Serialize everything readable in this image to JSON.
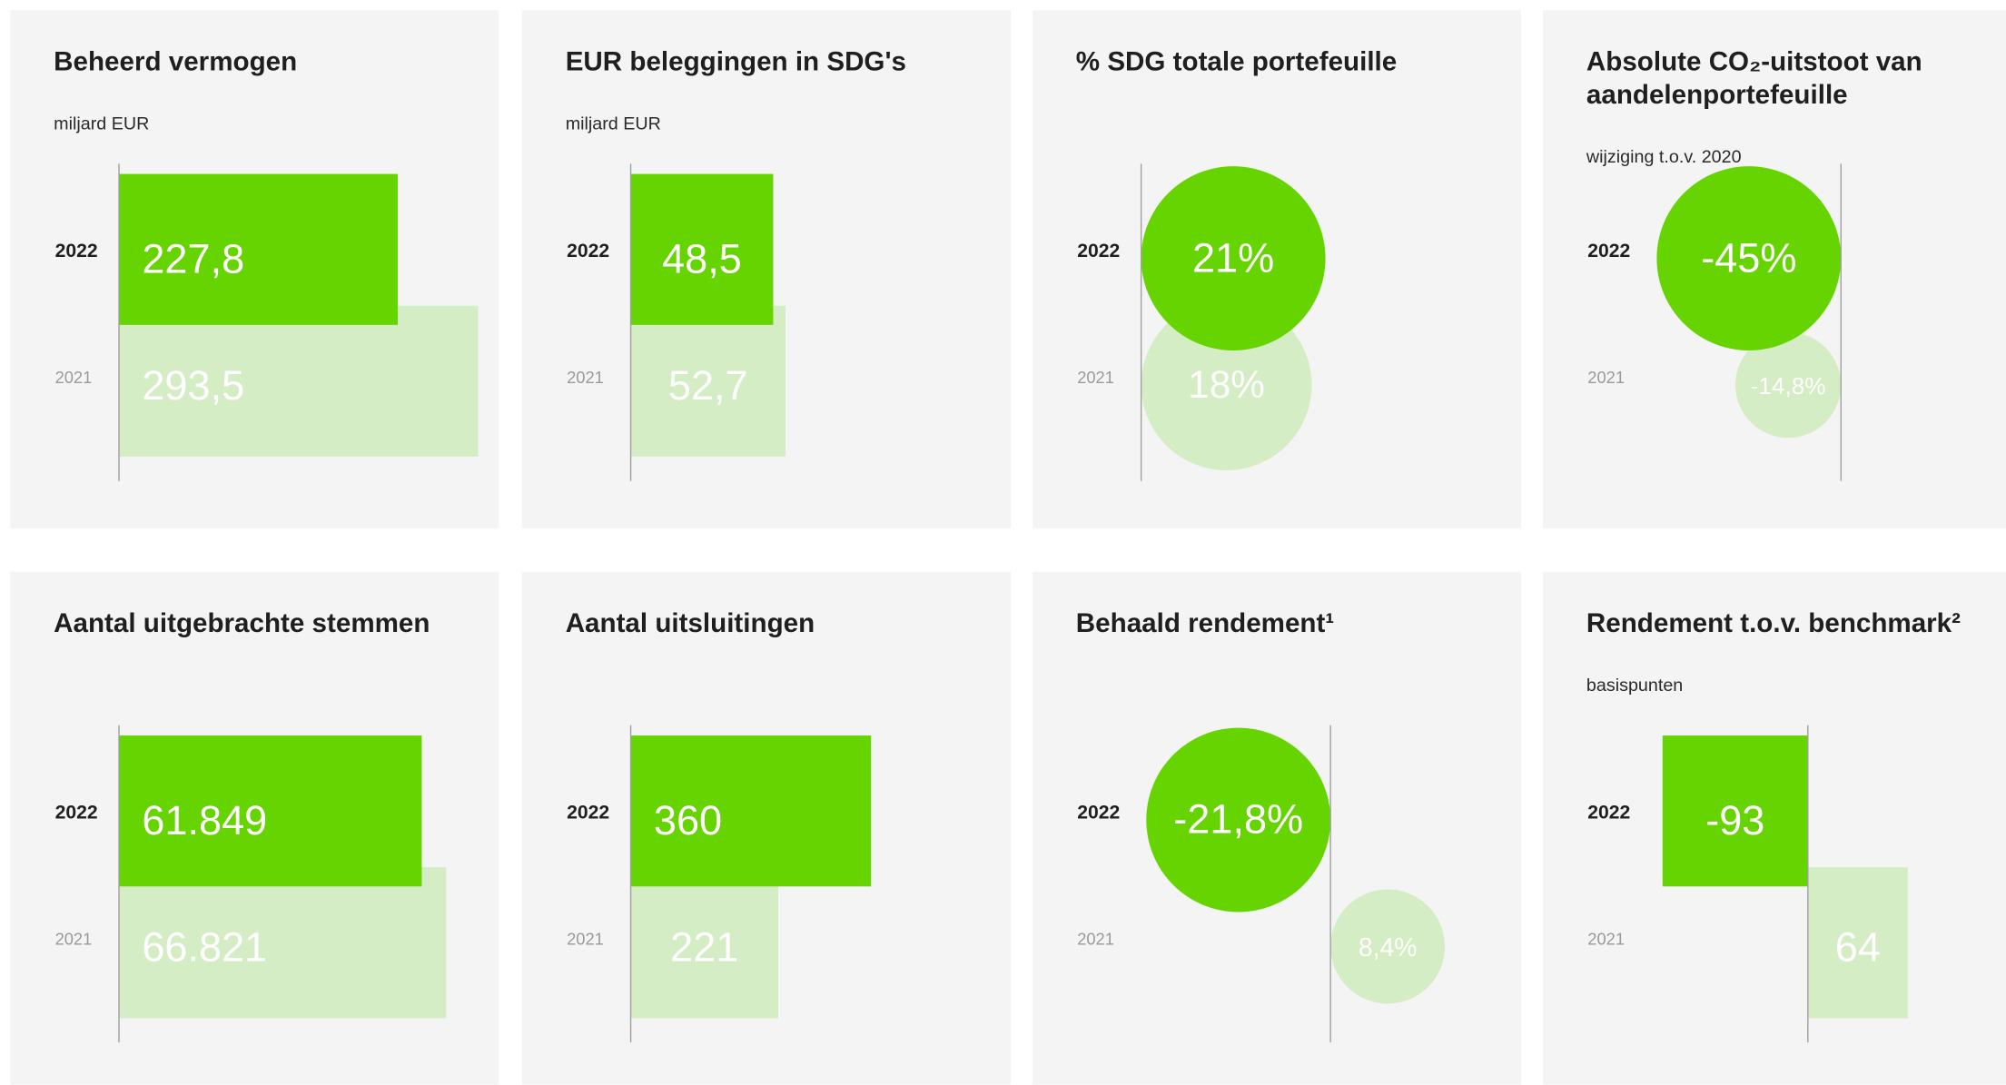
{
  "chart_data": [
    {
      "type": "bar",
      "title": "Beheerd vermogen",
      "subtitle": "miljard EUR",
      "categories": [
        "2022",
        "2021"
      ],
      "values": [
        227.8,
        293.5
      ],
      "value_labels": [
        "227,8",
        "293,5"
      ],
      "colors": [
        "#66d400",
        "#d5edc4"
      ],
      "xlim": [
        0,
        300
      ]
    },
    {
      "type": "bar",
      "title": "EUR beleggingen in SDG's",
      "subtitle": "miljard EUR",
      "categories": [
        "2022",
        "2021"
      ],
      "values": [
        48.5,
        52.7
      ],
      "value_labels": [
        "48,5",
        "52,7"
      ],
      "colors": [
        "#66d400",
        "#d5edc4"
      ],
      "xlim": [
        0,
        125
      ]
    },
    {
      "type": "bubble",
      "title": "% SDG totale portefeuille",
      "categories": [
        "2022",
        "2021"
      ],
      "values": [
        21,
        18
      ],
      "value_labels": [
        "21%",
        "18%"
      ],
      "colors": [
        "#66d400",
        "#d5edc4"
      ]
    },
    {
      "type": "bubble",
      "title": "Absolute CO₂-uitstoot van aandelenportefeuille",
      "subtitle": "wijziging t.o.v. 2020",
      "categories": [
        "2022",
        "2021"
      ],
      "values": [
        -45,
        -14.8
      ],
      "value_labels": [
        "-45%",
        "-14,8%"
      ],
      "colors": [
        "#66d400",
        "#d5edc4"
      ]
    },
    {
      "type": "bar",
      "title": "Aantal uitgebrachte stemmen",
      "categories": [
        "2022",
        "2021"
      ],
      "values": [
        61849,
        66821
      ],
      "value_labels": [
        "61.849",
        "66.821"
      ],
      "colors": [
        "#66d400",
        "#d5edc4"
      ],
      "xlim": [
        0,
        75000
      ]
    },
    {
      "type": "bar",
      "title": "Aantal uitsluitingen",
      "categories": [
        "2022",
        "2021"
      ],
      "values": [
        360,
        221
      ],
      "colors": [
        "#66d400",
        "#d5edc4"
      ],
      "xlim": [
        0,
        550
      ]
    },
    {
      "type": "bubble",
      "title": "Behaald rendement¹",
      "categories": [
        "2022",
        "2021"
      ],
      "values": [
        -21.8,
        8.4
      ],
      "value_labels": [
        "-21,8%",
        "8,4%"
      ],
      "colors": [
        "#66d400",
        "#d5edc4"
      ]
    },
    {
      "type": "bar",
      "title": "Rendement t.o.v. benchmark²",
      "subtitle": "basispunten",
      "categories": [
        "2022",
        "2021"
      ],
      "values": [
        -93,
        64
      ],
      "colors": [
        "#66d400",
        "#d5edc4"
      ],
      "xlim": [
        -100,
        135
      ]
    }
  ]
}
